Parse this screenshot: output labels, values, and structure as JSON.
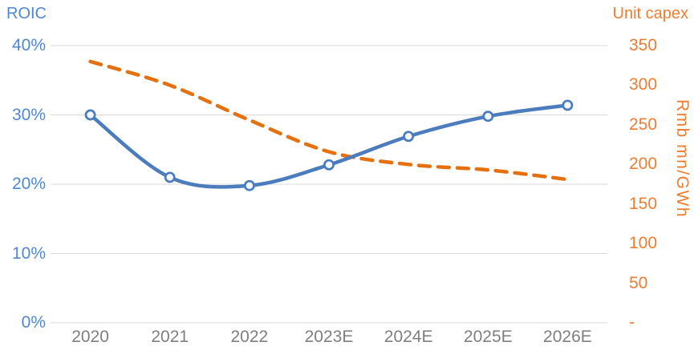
{
  "chart_data": {
    "type": "line",
    "subtype": "dual-axis smoothed line chart",
    "categories": [
      "2020",
      "2021",
      "2022",
      "2023E",
      "2024E",
      "2025E",
      "2026E"
    ],
    "series": [
      {
        "name": "ROIC",
        "axis": "left",
        "values": [
          30.0,
          21.0,
          19.8,
          22.8,
          26.9,
          29.8,
          31.4
        ],
        "value_unit": "%",
        "style": "solid",
        "smooth": true,
        "markers": true,
        "color": "#4a7cbe",
        "marker_fill": "#f4f8fc"
      },
      {
        "name": "Unit capex",
        "axis": "right",
        "values": [
          330,
          300,
          256,
          216,
          200,
          193,
          181
        ],
        "value_unit": "Rmb mn/GWh",
        "style": "dashed",
        "smooth": true,
        "markers": false,
        "color": "#e5700d"
      }
    ],
    "left_axis": {
      "title": "ROIC",
      "range": [
        0,
        40
      ],
      "ticks": [
        {
          "v": 40,
          "label": "40%"
        },
        {
          "v": 30,
          "label": "30%"
        },
        {
          "v": 20,
          "label": "20%"
        },
        {
          "v": 10,
          "label": "10%"
        },
        {
          "v": 0,
          "label": "0%"
        }
      ],
      "color": "#4e88d2"
    },
    "right_axis": {
      "title": "Unit capex",
      "unit_label": "Rmb mn/GWh",
      "range": [
        0,
        350
      ],
      "ticks": [
        {
          "v": 350,
          "label": "350"
        },
        {
          "v": 300,
          "label": "300"
        },
        {
          "v": 250,
          "label": "250"
        },
        {
          "v": 200,
          "label": "200"
        },
        {
          "v": 150,
          "label": "150"
        },
        {
          "v": 100,
          "label": "100"
        },
        {
          "v": 50,
          "label": "50"
        },
        {
          "v": 0,
          "label": "-"
        }
      ],
      "color": "#ed7d31"
    },
    "x_axis": {
      "labels": [
        "2020",
        "2021",
        "2022",
        "2023E",
        "2024E",
        "2025E",
        "2026E"
      ],
      "color": "#7f7f7f"
    },
    "gridlines": {
      "shown": true,
      "color": "#d9d9d9"
    },
    "legend_position": "none",
    "background": "#ffffff"
  }
}
